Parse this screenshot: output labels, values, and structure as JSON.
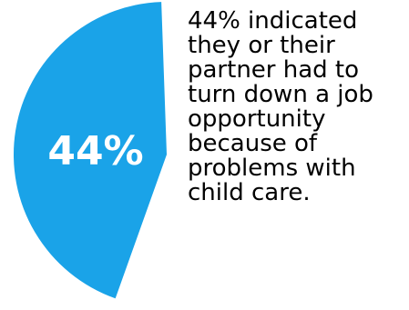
{
  "chart_data": {
    "type": "pie",
    "values": [
      44,
      56
    ],
    "slice_label": "44%",
    "caption_lines": [
      "44% indicated",
      "they or their",
      "partner had to",
      "turn down a job",
      "opportunity",
      "because of",
      "problems with",
      "child care."
    ]
  },
  "colors": {
    "slice": "#1aa3e8",
    "label_text": "#ffffff",
    "caption_text": "#000000"
  }
}
